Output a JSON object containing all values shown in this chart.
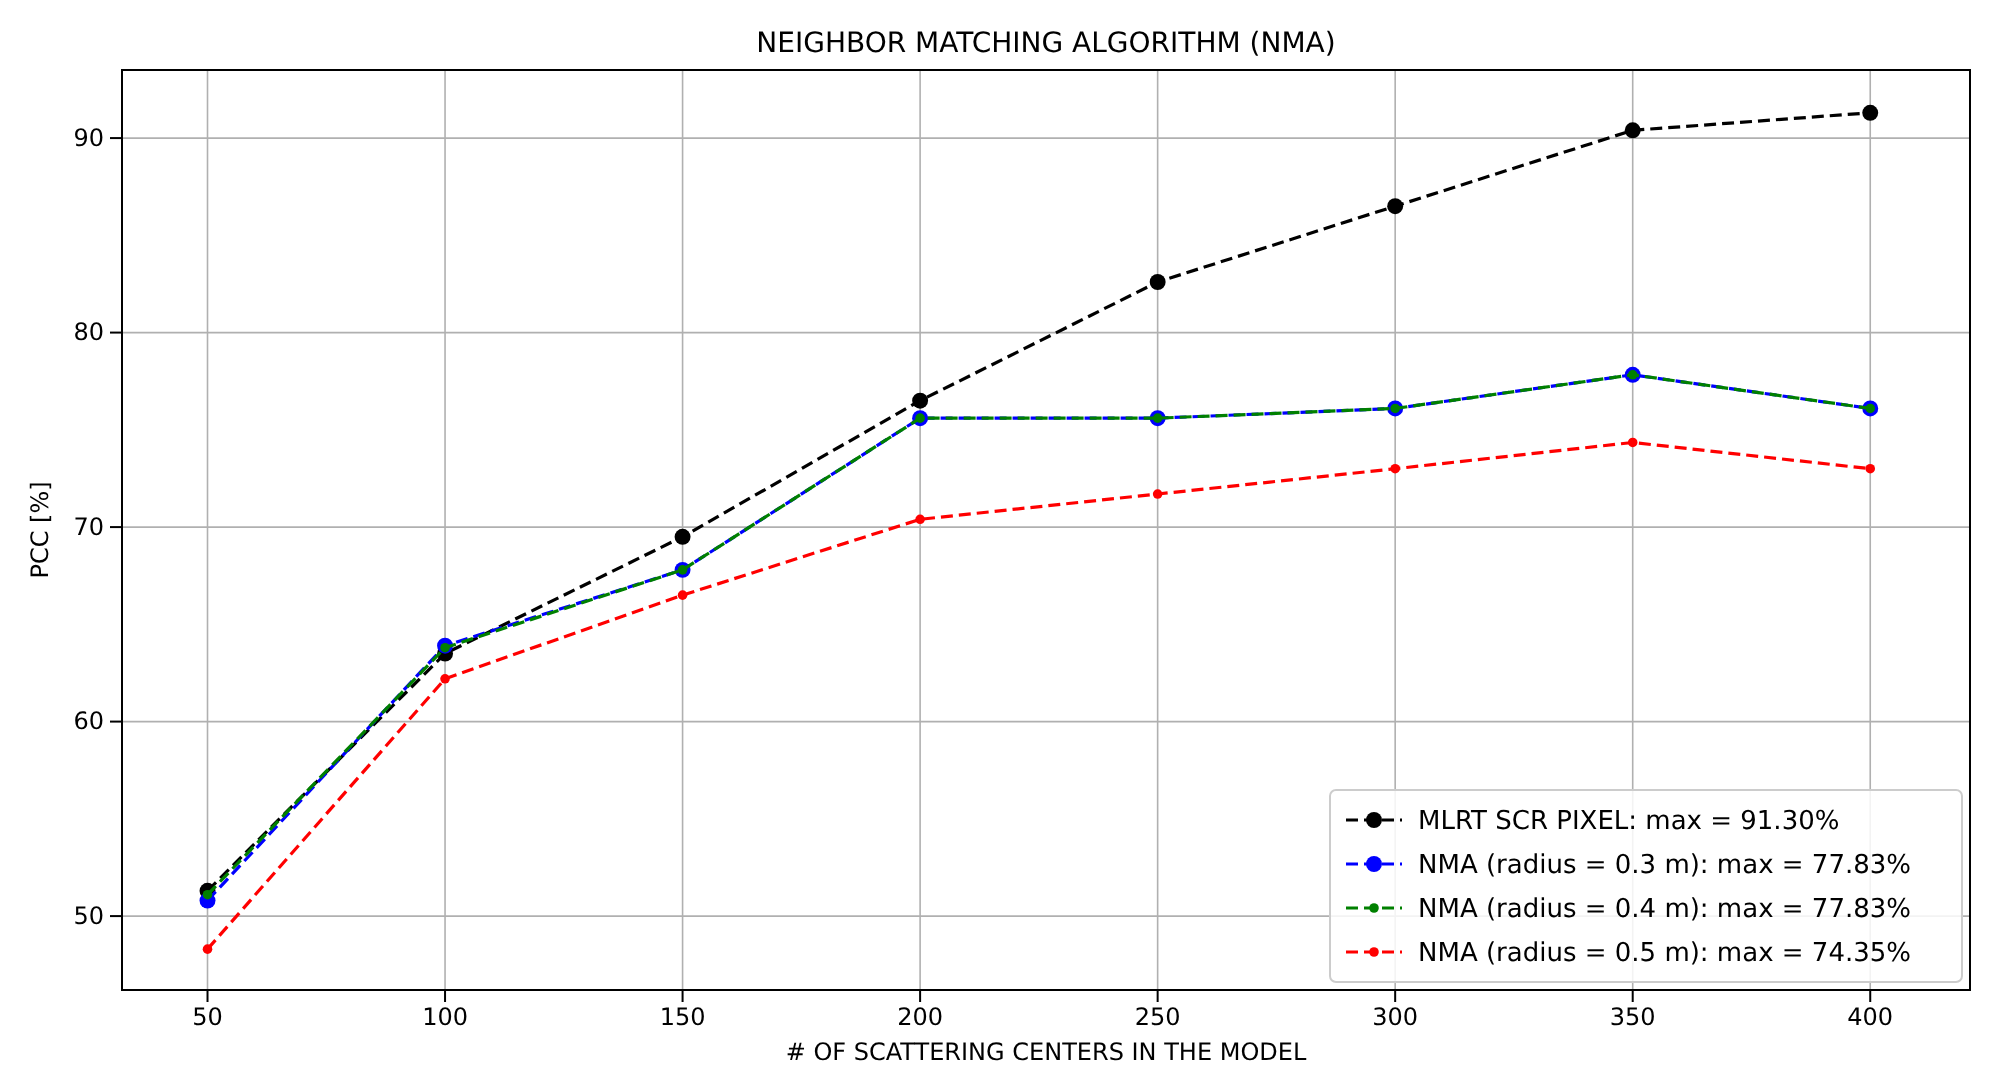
{
  "chart_data": {
    "type": "line",
    "title": "NEIGHBOR MATCHING ALGORITHM (NMA)",
    "xlabel": "# OF SCATTERING CENTERS IN THE MODEL",
    "ylabel": "PCC [%]",
    "x": [
      50,
      100,
      150,
      200,
      250,
      300,
      350,
      400
    ],
    "xlim": [
      32,
      421
    ],
    "xticks": [
      50,
      100,
      150,
      200,
      250,
      300,
      350,
      400
    ],
    "ylim": [
      46.2,
      93.5
    ],
    "yticks": [
      50,
      60,
      70,
      80,
      90
    ],
    "grid": true,
    "legend": "bottom right",
    "marker": "circle",
    "line_style": "dashed",
    "series": [
      {
        "name": "MLRT SCR PIXEL: max = 91.30%",
        "color": "#000000",
        "values": [
          51.3,
          63.5,
          69.5,
          76.5,
          82.6,
          86.5,
          90.4,
          91.3
        ]
      },
      {
        "name": "NMA (radius = 0.3 m): max = 77.83%",
        "color": "#0000ff",
        "values": [
          50.8,
          63.9,
          67.8,
          75.6,
          75.6,
          76.1,
          77.83,
          76.1
        ]
      },
      {
        "name": "NMA (radius = 0.4 m): max = 77.83%",
        "color": "#008000",
        "values": [
          51.1,
          63.8,
          67.8,
          75.6,
          75.6,
          76.1,
          77.83,
          76.1
        ]
      },
      {
        "name": "NMA (radius = 0.5 m): max = 74.35%",
        "color": "#ff0000",
        "values": [
          48.3,
          62.2,
          66.5,
          70.4,
          71.7,
          73.0,
          74.35,
          73.0
        ]
      }
    ]
  }
}
